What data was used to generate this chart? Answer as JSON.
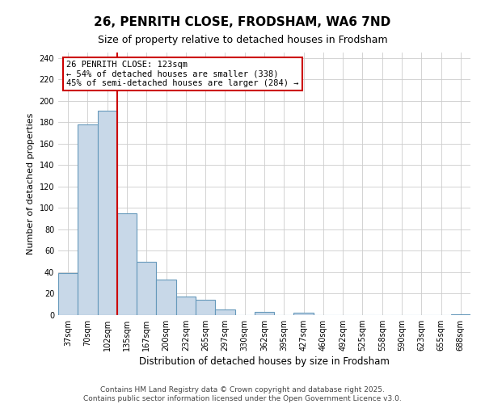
{
  "title": "26, PENRITH CLOSE, FRODSHAM, WA6 7ND",
  "subtitle": "Size of property relative to detached houses in Frodsham",
  "xlabel": "Distribution of detached houses by size in Frodsham",
  "ylabel": "Number of detached properties",
  "bar_labels": [
    "37sqm",
    "70sqm",
    "102sqm",
    "135sqm",
    "167sqm",
    "200sqm",
    "232sqm",
    "265sqm",
    "297sqm",
    "330sqm",
    "362sqm",
    "395sqm",
    "427sqm",
    "460sqm",
    "492sqm",
    "525sqm",
    "558sqm",
    "590sqm",
    "623sqm",
    "655sqm",
    "688sqm"
  ],
  "bar_values": [
    39,
    178,
    191,
    95,
    50,
    33,
    17,
    14,
    5,
    0,
    3,
    0,
    2,
    0,
    0,
    0,
    0,
    0,
    0,
    0,
    1
  ],
  "bar_color": "#c8d8e8",
  "bar_edge_color": "#6699bb",
  "annotation_text_line1": "26 PENRITH CLOSE: 123sqm",
  "annotation_text_line2": "← 54% of detached houses are smaller (338)",
  "annotation_text_line3": "45% of semi-detached houses are larger (284) →",
  "vline_color": "#cc0000",
  "annotation_box_color": "#ffffff",
  "annotation_box_edge": "#cc0000",
  "ylim": [
    0,
    245
  ],
  "yticks": [
    0,
    20,
    40,
    60,
    80,
    100,
    120,
    140,
    160,
    180,
    200,
    220,
    240
  ],
  "footer_line1": "Contains HM Land Registry data © Crown copyright and database right 2025.",
  "footer_line2": "Contains public sector information licensed under the Open Government Licence v3.0.",
  "background_color": "#ffffff",
  "grid_color": "#cccccc",
  "title_fontsize": 11,
  "subtitle_fontsize": 9,
  "xlabel_fontsize": 8.5,
  "ylabel_fontsize": 8,
  "tick_fontsize": 7,
  "annotation_fontsize": 7.5,
  "footer_fontsize": 6.5
}
